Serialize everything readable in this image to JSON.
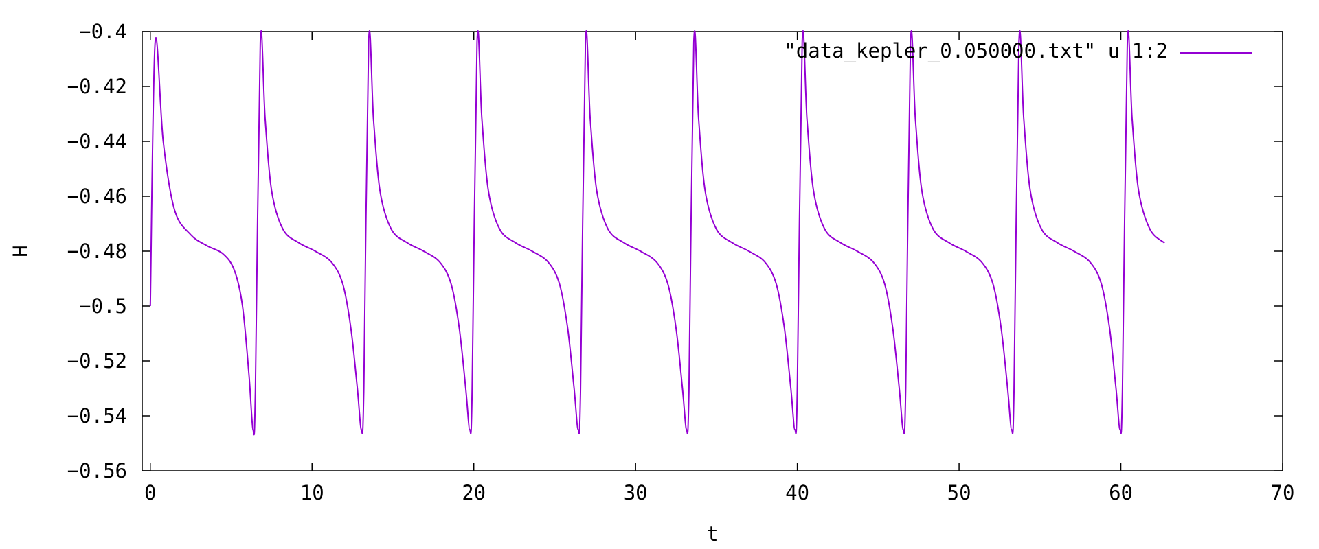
{
  "chart_data": {
    "type": "line",
    "title": "",
    "xlabel": "t",
    "ylabel": "H",
    "xlim": [
      -0.5,
      70
    ],
    "ylim": [
      -0.56,
      -0.4
    ],
    "x_ticks": [
      0,
      10,
      20,
      30,
      40,
      50,
      60,
      70
    ],
    "x_tick_labels": [
      "0",
      "10",
      "20",
      "30",
      "40",
      "50",
      "60",
      "70"
    ],
    "y_ticks": [
      -0.56,
      -0.54,
      -0.52,
      -0.5,
      -0.48,
      -0.46,
      -0.44,
      -0.42,
      -0.4
    ],
    "y_tick_labels": [
      "-0.56",
      "-0.54",
      "-0.52",
      "-0.5",
      "-0.48",
      "-0.46",
      "-0.44",
      "-0.42",
      "-0.4"
    ],
    "grid": false,
    "legend_position": "top-right",
    "series": [
      {
        "name": "\"data_kepler_0.050000.txt\" u 1:2",
        "color": "#9400d3",
        "x": [
          0.0,
          0.3,
          0.8,
          1.5,
          2.5,
          3.5,
          4.5,
          5.2,
          5.7,
          6.1,
          6.35,
          6.5,
          6.8,
          7.1,
          7.5,
          8.2,
          9.2,
          10.2,
          11.2,
          11.9,
          12.4,
          12.8,
          13.05,
          13.2,
          13.5,
          13.8,
          14.2,
          14.9,
          15.9,
          16.9,
          17.9,
          18.6,
          19.1,
          19.5,
          19.75,
          19.9,
          20.2,
          20.5,
          20.9,
          21.6,
          22.6,
          23.6,
          24.6,
          25.3,
          25.8,
          26.2,
          26.45,
          26.6,
          26.9,
          27.2,
          27.6,
          28.3,
          29.3,
          30.3,
          31.3,
          32.0,
          32.5,
          32.9,
          33.15,
          33.3,
          33.6,
          33.9,
          34.3,
          35.0,
          36.0,
          37.0,
          38.0,
          38.7,
          39.2,
          39.6,
          39.85,
          40.0,
          40.3,
          40.6,
          41.0,
          41.7,
          42.7,
          43.7,
          44.7,
          45.4,
          45.9,
          46.3,
          46.55,
          46.7,
          47.0,
          47.3,
          47.7,
          48.4,
          49.4,
          50.4,
          51.4,
          52.1,
          52.6,
          53.0,
          53.25,
          53.4,
          53.7,
          54.0,
          54.4,
          55.1,
          56.1,
          57.1,
          58.1,
          58.8,
          59.3,
          59.7,
          59.95,
          60.1,
          60.4,
          60.7,
          61.1,
          61.8,
          62.7
        ],
        "values": [
          -0.5,
          -0.404,
          -0.44,
          -0.465,
          -0.474,
          -0.478,
          -0.481,
          -0.487,
          -0.5,
          -0.525,
          -0.545,
          -0.53,
          -0.404,
          -0.432,
          -0.458,
          -0.472,
          -0.477,
          -0.48,
          -0.484,
          -0.492,
          -0.508,
          -0.53,
          -0.545,
          -0.53,
          -0.404,
          -0.432,
          -0.458,
          -0.472,
          -0.477,
          -0.48,
          -0.484,
          -0.492,
          -0.508,
          -0.53,
          -0.545,
          -0.53,
          -0.404,
          -0.432,
          -0.458,
          -0.472,
          -0.477,
          -0.48,
          -0.484,
          -0.492,
          -0.508,
          -0.53,
          -0.545,
          -0.53,
          -0.404,
          -0.432,
          -0.458,
          -0.472,
          -0.477,
          -0.48,
          -0.484,
          -0.492,
          -0.508,
          -0.53,
          -0.545,
          -0.53,
          -0.404,
          -0.432,
          -0.458,
          -0.472,
          -0.477,
          -0.48,
          -0.484,
          -0.492,
          -0.508,
          -0.53,
          -0.545,
          -0.53,
          -0.404,
          -0.432,
          -0.458,
          -0.472,
          -0.477,
          -0.48,
          -0.484,
          -0.492,
          -0.508,
          -0.53,
          -0.545,
          -0.53,
          -0.404,
          -0.432,
          -0.458,
          -0.472,
          -0.477,
          -0.48,
          -0.484,
          -0.492,
          -0.508,
          -0.53,
          -0.545,
          -0.53,
          -0.404,
          -0.432,
          -0.458,
          -0.472,
          -0.477,
          -0.48,
          -0.484,
          -0.492,
          -0.508,
          -0.53,
          -0.545,
          -0.53,
          -0.404,
          -0.432,
          -0.458,
          -0.472,
          -0.477
        ]
      }
    ]
  }
}
